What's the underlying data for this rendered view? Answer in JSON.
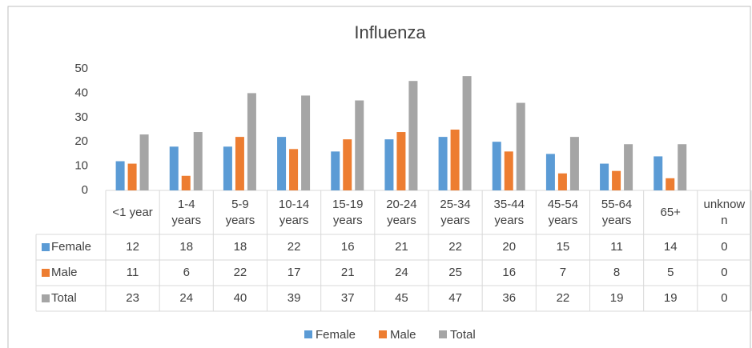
{
  "chart_data": {
    "type": "bar",
    "title": "Influenza",
    "categories": [
      "<1 year",
      "1-4 years",
      "5-9 years",
      "10-14 years",
      "15-19 years",
      "20-24 years",
      "25-34 years",
      "35-44 years",
      "45-54 years",
      "55-64 years",
      "65+",
      "unknown"
    ],
    "series": [
      {
        "name": "Female",
        "color": "#5b9bd5",
        "values": [
          12,
          18,
          18,
          22,
          16,
          21,
          22,
          20,
          15,
          11,
          14,
          0
        ]
      },
      {
        "name": "Male",
        "color": "#ed7d31",
        "values": [
          11,
          6,
          22,
          17,
          21,
          24,
          25,
          16,
          7,
          8,
          5,
          0
        ]
      },
      {
        "name": "Total",
        "color": "#a5a5a5",
        "values": [
          23,
          24,
          40,
          39,
          37,
          45,
          47,
          36,
          22,
          19,
          19,
          0
        ]
      }
    ],
    "ylim": [
      0,
      50
    ],
    "yticks": [
      0,
      10,
      20,
      30,
      40,
      50
    ],
    "grid": false,
    "legend": "bottom"
  }
}
